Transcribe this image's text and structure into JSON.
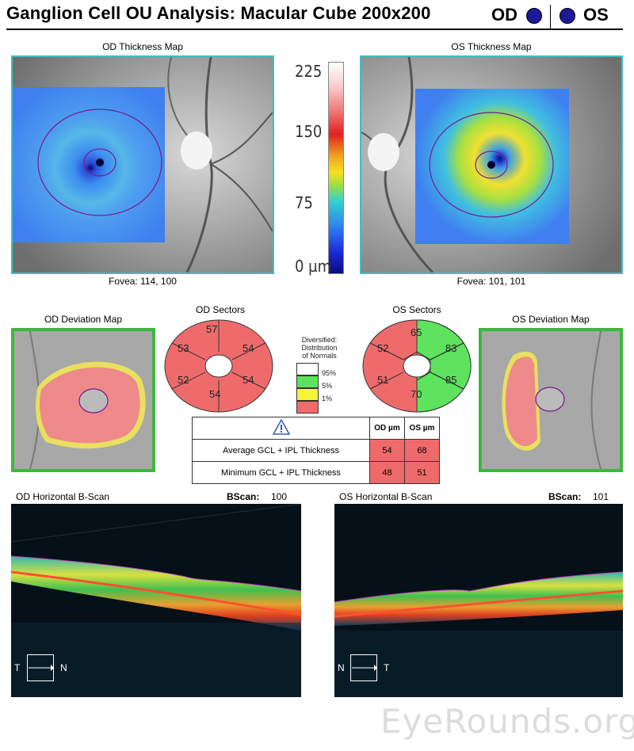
{
  "header": {
    "title": "Ganglion Cell OU Analysis: Macular Cube 200x200",
    "od_label": "OD",
    "os_label": "OS"
  },
  "thickness_maps": {
    "od_title": "OD Thickness Map",
    "os_title": "OS Thickness Map",
    "od_fovea": "Fovea: 114, 100",
    "os_fovea": "Fovea: 101, 101"
  },
  "color_scale": {
    "ticks": [
      "225",
      "150",
      "75",
      "0 µm"
    ]
  },
  "deviation_maps": {
    "od_title": "OD Deviation Map",
    "os_title": "OS Deviation Map"
  },
  "sectors": {
    "od_title": "OD Sectors",
    "os_title": "OS Sectors",
    "od_values": {
      "sup": "57",
      "supnas": "54",
      "infnas": "54",
      "inf": "54",
      "inftemp": "52",
      "suptemp": "53"
    },
    "os_values": {
      "sup": "65",
      "suptemp": "83",
      "inftemp": "85",
      "inf": "70",
      "infnas": "51",
      "supnas": "52"
    }
  },
  "legend": {
    "title_lines": [
      "Diversified:",
      "Distribution",
      "of Normals"
    ],
    "rows": [
      {
        "label": "95%",
        "color": "#ffffff"
      },
      {
        "label": "5%",
        "color": "#5de35d"
      },
      {
        "label": "1%",
        "color": "#f5f53a"
      },
      {
        "label": "",
        "color": "#ef6b6b"
      }
    ]
  },
  "summary_table": {
    "col_od": "OD µm",
    "col_os": "OS µm",
    "rows": [
      {
        "label": "Average GCL + IPL Thickness",
        "od": "54",
        "os": "68"
      },
      {
        "label": "Minimum GCL + IPL Thickness",
        "od": "48",
        "os": "51"
      }
    ]
  },
  "bscans": {
    "od_title": "OD Horizontal B-Scan",
    "os_title": "OS Horizontal B-Scan",
    "bscan_label": "BScan:",
    "od_index": "100",
    "os_index": "101",
    "od_compass": {
      "left": "T",
      "right": "N"
    },
    "os_compass": {
      "left": "N",
      "right": "T"
    }
  },
  "watermark": "EyeRounds.org",
  "colors": {
    "sector_red": "#ef6b6b",
    "sector_green": "#5de35d",
    "deviation_frame": "#3db83d",
    "map_frame": "#3fbfbf",
    "eye_dot": "#1a1a9a"
  }
}
